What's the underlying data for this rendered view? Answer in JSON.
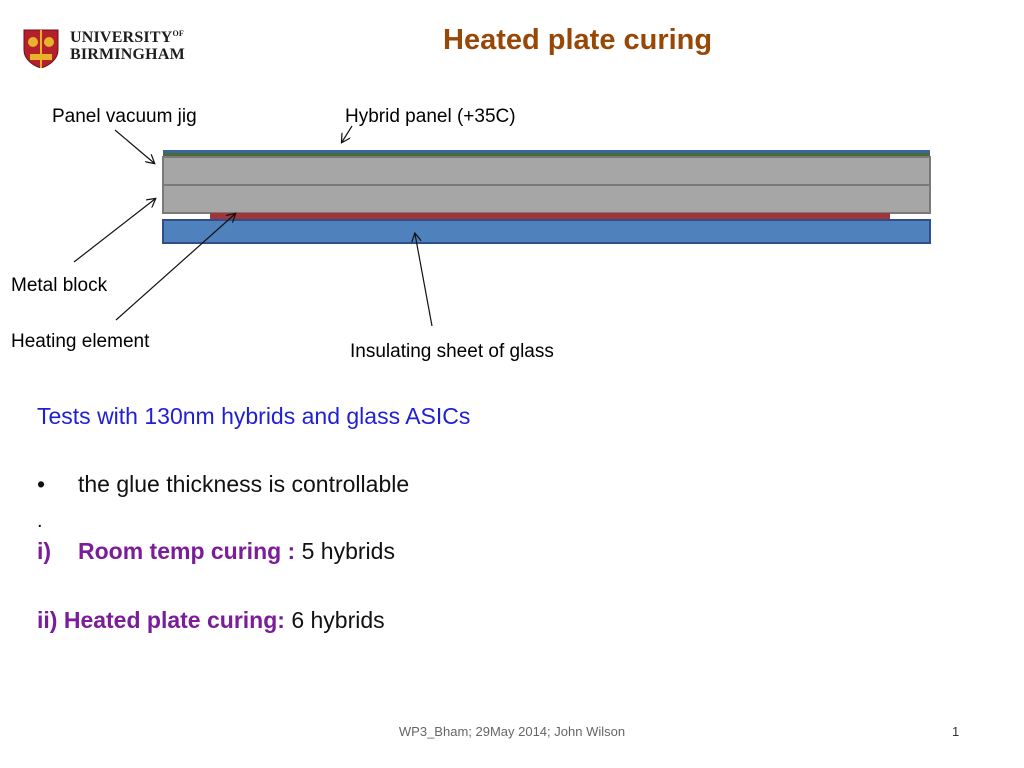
{
  "logo": {
    "line1": "UNIVERSITY",
    "line1_suffix": "OF",
    "line2": "BIRMINGHAM",
    "colors": {
      "shield_red": "#b5212b",
      "shield_gold": "#e7b32b"
    }
  },
  "title": "Heated plate curing",
  "diagram": {
    "labels": {
      "panel_vacuum_jig": "Panel vacuum jig",
      "hybrid_panel": "Hybrid panel (+35C)",
      "metal_block": "Metal block",
      "heating_element": "Heating element",
      "insulating_glass": "Insulating sheet of glass"
    },
    "colors": {
      "block_fill": "#a6a6a6",
      "block_stroke": "#7a7a7a",
      "hybrid_top": "#4a6b2f",
      "hybrid_blue": "#3b63a8",
      "heater": "#a0353a",
      "glass_fill": "#4f81bd",
      "glass_stroke": "#2e4f8a"
    }
  },
  "body": {
    "heading": "Tests with 130nm hybrids and glass ASICs",
    "bullet_char": "•",
    "bullet_text": "the glue thickness is controllable",
    "dot": ".",
    "item1_num": "i)",
    "item1_label": "Room temp curing :",
    "item1_value": "5 hybrids",
    "item2_label": "ii) Heated plate curing:",
    "item2_value": "6 hybrids"
  },
  "footer": {
    "text": "WP3_Bham; 29May 2014; John Wilson",
    "page_number": "1"
  }
}
